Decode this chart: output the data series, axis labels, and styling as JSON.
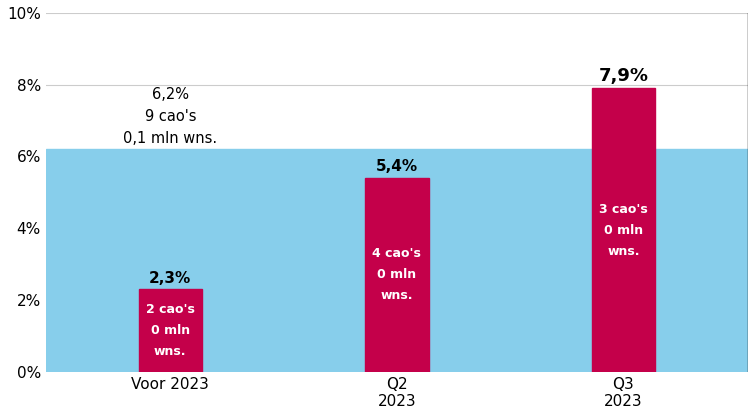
{
  "categories": [
    "Voor 2023",
    "Q2\n2023",
    "Q3\n2023"
  ],
  "blue_value": 6.2,
  "pink_values": [
    2.3,
    5.4,
    7.9
  ],
  "blue_color": "#87CEEB",
  "pink_color": "#C4004A",
  "blue_label_line1": "6,2%",
  "blue_label_line2": "9 cao's",
  "blue_label_line3": "0,1 mln wns.",
  "pink_labels": [
    "2,3%",
    "5,4%",
    "7,9%"
  ],
  "pink_sublabels": [
    "2 cao's\n0 mln\nwns.",
    "4 cao's\n0 mln\nwns.",
    "3 cao's\n0 mln\nwns."
  ],
  "ylim": [
    0,
    10
  ],
  "yticks": [
    0,
    2,
    4,
    6,
    8,
    10
  ],
  "ytick_labels": [
    "0%",
    "2%",
    "4%",
    "6%",
    "8%",
    "10%"
  ],
  "figsize": [
    7.55,
    4.16
  ],
  "dpi": 100,
  "bar_positions": [
    0,
    1,
    2
  ],
  "pink_bar_width": 0.28,
  "blue_bar_xleft": -0.55,
  "blue_bar_xright": 2.55
}
